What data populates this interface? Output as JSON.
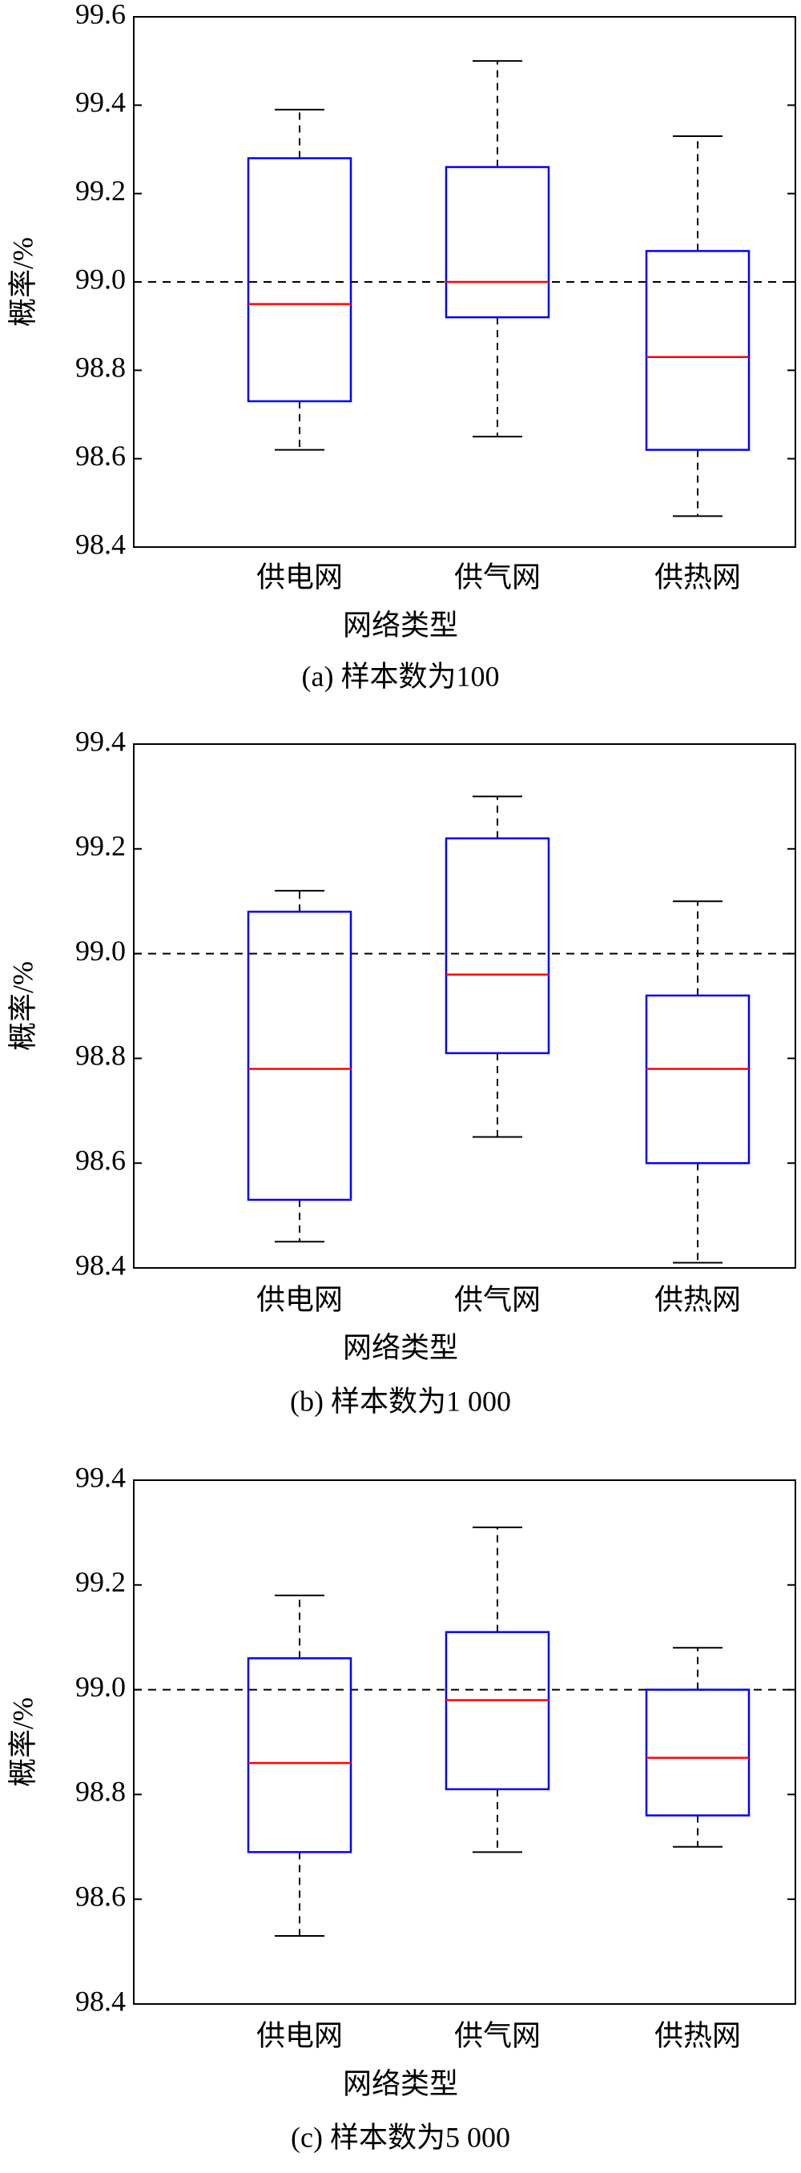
{
  "chart_data": [
    {
      "type": "box",
      "title": "(a) 样本数为100",
      "xlabel": "网络类型",
      "ylabel": "概率/%",
      "categories": [
        "供电网",
        "供气网",
        "供热网"
      ],
      "values": [
        {
          "min": 98.62,
          "q1": 98.73,
          "median": 98.95,
          "q3": 99.28,
          "max": 99.39
        },
        {
          "min": 98.65,
          "q1": 98.92,
          "median": 99.0,
          "q3": 99.26,
          "max": 99.5
        },
        {
          "min": 98.47,
          "q1": 98.62,
          "median": 98.83,
          "q3": 99.07,
          "max": 99.33
        }
      ],
      "box_color": "#0000ff",
      "median_color": "#ff0000",
      "whisker_color": "#000000",
      "hline": 99.0,
      "ylim": [
        98.4,
        99.6
      ],
      "yticks": [
        98.4,
        98.6,
        98.8,
        {
          "value": 99.0,
          "label": "99.0"
        },
        99.2,
        99.4,
        99.6
      ]
    },
    {
      "type": "box",
      "title": "(b) 样本数为1 000",
      "xlabel": "网络类型",
      "ylabel": "概率/%",
      "categories": [
        "供电网",
        "供气网",
        "供热网"
      ],
      "values": [
        {
          "min": 98.45,
          "q1": 98.53,
          "median": 98.78,
          "q3": 99.08,
          "max": 99.12
        },
        {
          "min": 98.65,
          "q1": 98.81,
          "median": 98.96,
          "q3": 99.22,
          "max": 99.3
        },
        {
          "min": 98.41,
          "q1": 98.6,
          "median": 98.78,
          "q3": 98.92,
          "max": 99.1
        }
      ],
      "box_color": "#0000ff",
      "median_color": "#ff0000",
      "whisker_color": "#000000",
      "hline": 99.0,
      "ylim": [
        98.4,
        99.4
      ],
      "yticks": [
        98.4,
        98.6,
        98.8,
        {
          "value": 99.0,
          "label": "99.0"
        },
        99.2,
        99.4
      ]
    },
    {
      "type": "box",
      "title": "(c) 样本数为5 000",
      "xlabel": "网络类型",
      "ylabel": "概率/%",
      "categories": [
        "供电网",
        "供气网",
        "供热网"
      ],
      "values": [
        {
          "min": 98.53,
          "q1": 98.69,
          "median": 98.86,
          "q3": 99.06,
          "max": 99.18
        },
        {
          "min": 98.69,
          "q1": 98.81,
          "median": 98.98,
          "q3": 99.11,
          "max": 99.31
        },
        {
          "min": 98.7,
          "q1": 98.76,
          "median": 98.87,
          "q3": 99.0,
          "max": 99.08
        }
      ],
      "box_color": "#0000ff",
      "median_color": "#ff0000",
      "whisker_color": "#000000",
      "hline": 99.0,
      "ylim": [
        98.4,
        99.4
      ],
      "yticks": [
        98.4,
        98.6,
        98.8,
        {
          "value": 99.0,
          "label": "99.0"
        },
        99.2,
        99.4
      ]
    }
  ]
}
